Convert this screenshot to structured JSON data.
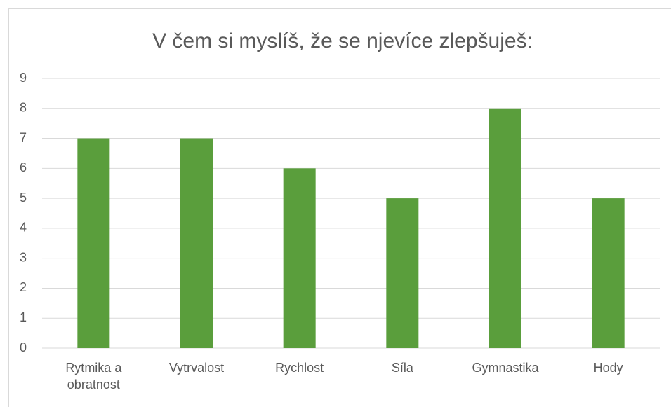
{
  "chart_data": {
    "type": "bar",
    "title": "V čem si myslíš, že se njevíce zlepšuješ:",
    "categories": [
      "Rytmika a obratnost",
      "Vytrvalost",
      "Rychlost",
      "Síla",
      "Gymnastika",
      "Hody"
    ],
    "values": [
      7,
      7,
      6,
      5,
      8,
      5
    ],
    "color": "#5a9e3c",
    "ylim": [
      0,
      9
    ],
    "yticks": [
      0,
      1,
      2,
      3,
      4,
      5,
      6,
      7,
      8,
      9
    ],
    "grid": true
  }
}
